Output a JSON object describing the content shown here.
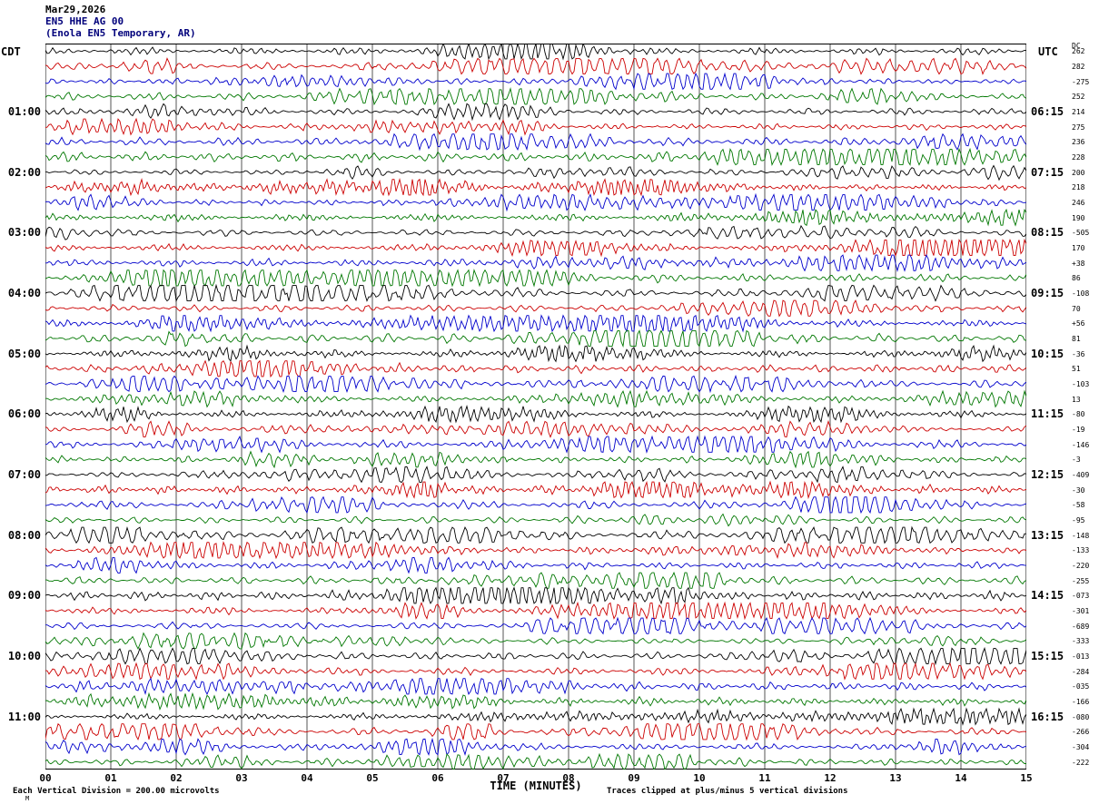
{
  "header": {
    "date": "Mar29,2026",
    "station": "EN5 HHE AG 00",
    "location": "(Enola EN5 Temporary, AR)"
  },
  "left_axis": {
    "label": "CDT"
  },
  "right_axis": {
    "label": "UTC"
  },
  "dc_column": {
    "label": "DC"
  },
  "x_axis": {
    "label": "TIME (MINUTES)"
  },
  "footer": {
    "scale_note": "Each Vertical Division =  200.00 microvolts",
    "clip_note": "Traces clipped at plus/minus 5 vertical divisions",
    "corner_mark": "M"
  },
  "chart_data": {
    "type": "line",
    "variant": "helicorder-seismogram",
    "rows": 48,
    "minutes_per_row": 15,
    "rows_per_hour": 4,
    "hour_label_row_start": 4,
    "x_ticks": [
      "00",
      "01",
      "02",
      "03",
      "04",
      "05",
      "06",
      "07",
      "08",
      "09",
      "10",
      "11",
      "12",
      "13",
      "14",
      "15"
    ],
    "trace_color_cycle": [
      "#000000",
      "#cc0000",
      "#0000cc",
      "#007700"
    ],
    "left_hour_labels": [
      "01:00",
      "02:00",
      "03:00",
      "04:00",
      "05:00",
      "06:00",
      "07:00",
      "08:00",
      "09:00",
      "10:00",
      "11:00"
    ],
    "right_hour_labels": [
      "06:15",
      "07:15",
      "08:15",
      "09:15",
      "10:15",
      "11:15",
      "12:15",
      "13:15",
      "14:15",
      "15:15",
      "16:15"
    ],
    "dc_offsets": [
      "262",
      "282",
      "-275",
      "252",
      "214",
      "275",
      "236",
      "228",
      "200",
      "218",
      "246",
      "190",
      "-505",
      "170",
      "+38",
      "86",
      "-108",
      "70",
      "+56",
      "81",
      "-36",
      "51",
      "-103",
      "13",
      "-80",
      "-19",
      "-146",
      "-3",
      "-409",
      "-30",
      "-58",
      "-95",
      "-148",
      "-133",
      "-220",
      "-255",
      "-073",
      "-301",
      "-689",
      "-333",
      "-013",
      "-284",
      "-035",
      "-166",
      "-080",
      "-266",
      "-304",
      "-222"
    ],
    "vertical_division_microvolts": 200.0,
    "clip_divisions": 5
  }
}
